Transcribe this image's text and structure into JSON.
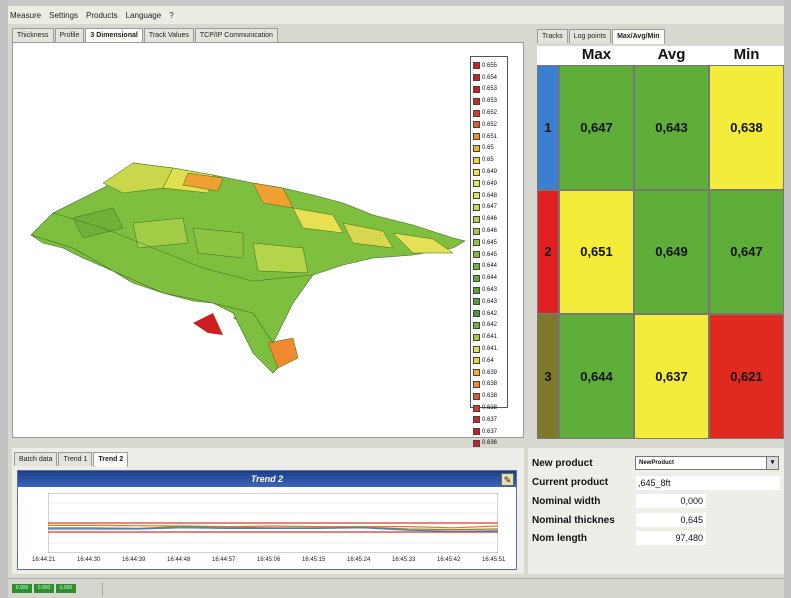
{
  "menu": [
    "Measure",
    "Settings",
    "Products",
    "Language",
    "?"
  ],
  "main_tabs": [
    "Thickness",
    "Profile",
    "3 Dimensional",
    "Track Values",
    "TCP/IP Communication"
  ],
  "main_active_tab": 2,
  "right_tabs": [
    "Tracks",
    "Log points",
    "Max/Avg/Min"
  ],
  "right_active_tab": 2,
  "legend_3d": {
    "values": [
      "0.655",
      "0.654",
      "0.653",
      "0.653",
      "0.652",
      "0.652",
      "0.651",
      "0.65",
      "0.65",
      "0.649",
      "0.649",
      "0.648",
      "0.647",
      "0.646",
      "0.646",
      "0.645",
      "0.645",
      "0.644",
      "0.644",
      "0.643",
      "0.643",
      "0.642",
      "0.642",
      "0.641",
      "0.641",
      "0.64",
      "0.639",
      "0.638",
      "0.638",
      "0.638",
      "0.637",
      "0.637",
      "0.636"
    ],
    "colors": [
      "#cc1f1f",
      "#cc1f1f",
      "#cc1f1f",
      "#cc2a1f",
      "#d8392a",
      "#e05a30",
      "#f08a30",
      "#f4b030",
      "#f6d040",
      "#f0e050",
      "#e8e858",
      "#dbe45a",
      "#c8dc52",
      "#b4d44c",
      "#a0cc46",
      "#8cc441",
      "#7cbc3d",
      "#6fb53a",
      "#63ae38",
      "#57a836",
      "#4fa234",
      "#4a9d33",
      "#6fb53a",
      "#a0cc46",
      "#dbe45a",
      "#f6d040",
      "#f4b030",
      "#f08a30",
      "#e05a30",
      "#d8392a",
      "#cc2a1f",
      "#cc1f1f",
      "#cc1f1f"
    ]
  },
  "max_avg_min": {
    "headers": [
      "Max",
      "Avg",
      "Min"
    ],
    "rows": [
      {
        "index": "1",
        "max": "0,647",
        "avg": "0,643",
        "min": "0,638",
        "index_color": "#3b7fd0",
        "colors": [
          "#5fae3a",
          "#5fae3a",
          "#f3ec3a"
        ]
      },
      {
        "index": "2",
        "max": "0,651",
        "avg": "0,649",
        "min": "0,647",
        "index_color": "#e02020",
        "colors": [
          "#f3ec3a",
          "#5fae3a",
          "#5fae3a"
        ]
      },
      {
        "index": "3",
        "max": "0,644",
        "avg": "0,637",
        "min": "0,621",
        "index_color": "#7e7a2a",
        "colors": [
          "#5fae3a",
          "#f3ec3a",
          "#e02a20"
        ]
      }
    ]
  },
  "bottom_tabs": [
    "Batch data",
    "Trend 1",
    "Trend 2"
  ],
  "bottom_active_tab": 2,
  "trend": {
    "title": "Trend 2",
    "x_labels": [
      "16:44:21",
      "16:44:30",
      "16:44:39",
      "16:44:48",
      "16:44:57",
      "16:45:06",
      "16:45:15",
      "16:45:24",
      "16:45:33",
      "16:45:42",
      "16:45:51"
    ],
    "series": [
      {
        "color": "#e03a2a",
        "values": [
          0.5,
          0.5,
          0.5,
          0.5,
          0.5,
          0.5,
          0.5,
          0.5,
          0.5,
          0.5,
          0.5
        ]
      },
      {
        "color": "#e07a20",
        "values": [
          0.46,
          0.46,
          0.455,
          0.45,
          0.44,
          0.45,
          0.44,
          0.44,
          0.44,
          0.42,
          0.45
        ]
      },
      {
        "color": "#8a8a30",
        "values": [
          0.42,
          0.42,
          0.41,
          0.44,
          0.43,
          0.42,
          0.42,
          0.43,
          0.4,
          0.39,
          0.4
        ]
      },
      {
        "color": "#3b7fd0",
        "values": [
          0.4,
          0.4,
          0.4,
          0.42,
          0.41,
          0.41,
          0.41,
          0.42,
          0.38,
          0.36,
          0.37
        ]
      },
      {
        "color": "#e03a2a",
        "values": [
          0.35,
          0.35,
          0.35,
          0.35,
          0.35,
          0.35,
          0.35,
          0.35,
          0.35,
          0.35,
          0.35
        ]
      }
    ]
  },
  "product": {
    "new_label": "New product",
    "new_value": "NewProduct",
    "current_label": "Current product",
    "current_value": ",645_8ft",
    "fields": [
      {
        "label": "Nominal width",
        "value": "0,000"
      },
      {
        "label": "Nominal thicknes",
        "value": "0,645"
      },
      {
        "label": "Nom length",
        "value": "97,480"
      }
    ]
  },
  "status_leds": [
    "0.000",
    "0.000",
    "0.000"
  ]
}
